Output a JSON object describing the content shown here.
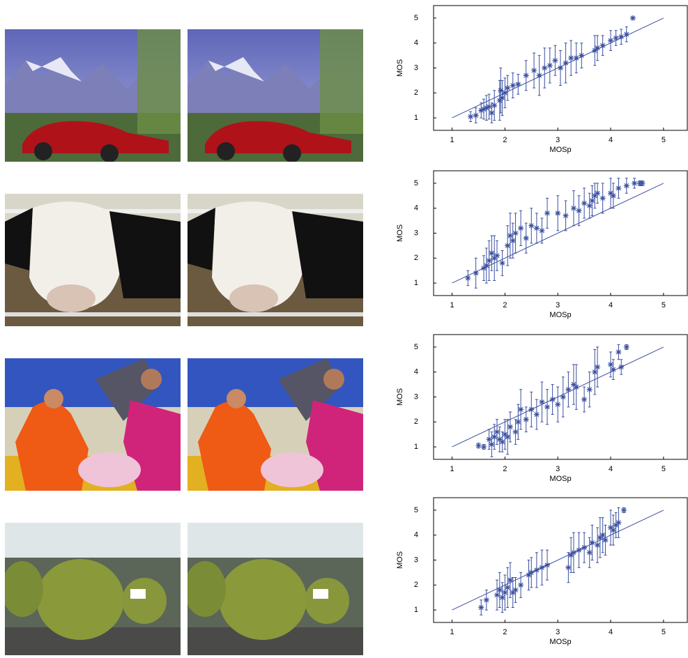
{
  "chart_data": [
    {
      "type": "scatter",
      "xlabel": "MOSp",
      "ylabel": "MOS",
      "color": "#3a4fa0",
      "xlim": [
        0.65,
        5.45
      ],
      "ylim": [
        0.5,
        5.5
      ],
      "xticks": [
        1,
        2,
        3,
        4,
        5
      ],
      "yticks": [
        1,
        2,
        3,
        4,
        5
      ],
      "fit": {
        "x": [
          1,
          5
        ],
        "values": [
          1,
          5
        ]
      },
      "x": [
        1.35,
        1.45,
        1.55,
        1.6,
        1.65,
        1.7,
        1.75,
        1.8,
        1.9,
        1.92,
        1.95,
        2.0,
        2.05,
        2.15,
        2.25,
        2.4,
        2.55,
        2.65,
        2.75,
        2.85,
        2.95,
        3.05,
        3.15,
        3.25,
        3.35,
        3.45,
        3.7,
        3.75,
        3.85,
        4.0,
        4.1,
        4.2,
        4.3,
        4.42
      ],
      "values": [
        1.05,
        1.1,
        1.3,
        1.35,
        1.4,
        1.45,
        1.2,
        1.5,
        1.7,
        2.1,
        1.8,
        2.0,
        2.2,
        2.3,
        2.35,
        2.7,
        2.9,
        2.7,
        3.0,
        3.1,
        3.3,
        3.0,
        3.2,
        3.4,
        3.4,
        3.5,
        3.7,
        3.8,
        3.9,
        4.1,
        4.2,
        4.25,
        4.35,
        5.0
      ],
      "errors": [
        0.2,
        0.3,
        0.3,
        0.4,
        0.5,
        0.5,
        0.4,
        0.6,
        0.8,
        0.9,
        0.7,
        0.6,
        0.5,
        0.5,
        0.4,
        0.6,
        0.7,
        0.8,
        0.8,
        0.7,
        0.6,
        0.7,
        0.8,
        0.7,
        0.6,
        0.5,
        0.6,
        0.5,
        0.4,
        0.4,
        0.3,
        0.3,
        0.3,
        0
      ]
    },
    {
      "type": "scatter",
      "xlabel": "MOSp",
      "ylabel": "MOS",
      "color": "#3a4fa0",
      "xlim": [
        0.65,
        5.45
      ],
      "ylim": [
        0.5,
        5.5
      ],
      "xticks": [
        1,
        2,
        3,
        4,
        5
      ],
      "yticks": [
        1,
        2,
        3,
        4,
        5
      ],
      "fit": {
        "x": [
          1,
          5
        ],
        "values": [
          1,
          5
        ]
      },
      "x": [
        1.3,
        1.45,
        1.6,
        1.65,
        1.7,
        1.75,
        1.8,
        1.85,
        1.95,
        2.05,
        2.1,
        2.15,
        2.2,
        2.3,
        2.4,
        2.5,
        2.6,
        2.7,
        2.8,
        3.0,
        3.15,
        3.3,
        3.4,
        3.5,
        3.6,
        3.65,
        3.7,
        3.75,
        3.85,
        4.0,
        4.05,
        4.15,
        4.3,
        4.45,
        4.55,
        4.6
      ],
      "values": [
        1.2,
        1.4,
        1.6,
        1.7,
        1.9,
        2.2,
        2.0,
        2.1,
        1.8,
        2.5,
        2.9,
        2.7,
        3.0,
        3.2,
        2.8,
        3.3,
        3.2,
        3.1,
        3.8,
        3.8,
        3.7,
        4.0,
        3.9,
        4.2,
        4.1,
        4.3,
        4.5,
        4.6,
        4.4,
        4.6,
        4.5,
        4.8,
        4.9,
        5.0,
        5.0,
        5.0
      ],
      "errors": [
        0.3,
        0.6,
        0.5,
        0.7,
        0.8,
        0.7,
        0.9,
        0.6,
        0.5,
        0.8,
        0.9,
        0.7,
        0.8,
        0.7,
        0.6,
        0.7,
        0.6,
        0.5,
        0.6,
        0.7,
        0.6,
        0.7,
        0.6,
        0.6,
        0.5,
        0.6,
        0.5,
        0.4,
        0.6,
        0.6,
        0.5,
        0.4,
        0.3,
        0.2,
        0.1,
        0.1
      ]
    },
    {
      "type": "scatter",
      "xlabel": "MOSp",
      "ylabel": "MOS",
      "color": "#3a4fa0",
      "xlim": [
        0.65,
        5.45
      ],
      "ylim": [
        0.5,
        5.5
      ],
      "xticks": [
        1,
        2,
        3,
        4,
        5
      ],
      "yticks": [
        1,
        2,
        3,
        4,
        5
      ],
      "fit": {
        "x": [
          1,
          5
        ],
        "values": [
          1,
          5
        ]
      },
      "x": [
        1.5,
        1.6,
        1.7,
        1.75,
        1.8,
        1.85,
        1.9,
        1.95,
        2.0,
        2.05,
        2.1,
        2.2,
        2.25,
        2.3,
        2.4,
        2.5,
        2.6,
        2.7,
        2.8,
        2.9,
        3.0,
        3.1,
        3.2,
        3.3,
        3.35,
        3.5,
        3.6,
        3.7,
        3.75,
        4.0,
        4.05,
        4.15,
        4.2,
        4.3
      ],
      "values": [
        1.05,
        1.0,
        1.3,
        1.1,
        1.4,
        1.6,
        1.3,
        1.2,
        1.5,
        1.4,
        1.8,
        1.6,
        2.0,
        2.5,
        2.1,
        2.5,
        2.3,
        2.8,
        2.6,
        2.9,
        2.7,
        3.0,
        3.3,
        3.5,
        3.4,
        2.9,
        3.3,
        4.0,
        4.2,
        4.3,
        4.1,
        4.8,
        4.2,
        5.0
      ],
      "errors": [
        0.1,
        0.1,
        0.4,
        0.5,
        0.5,
        0.5,
        0.5,
        0.4,
        0.6,
        0.7,
        0.6,
        0.5,
        0.7,
        0.8,
        0.5,
        0.7,
        0.6,
        0.8,
        0.7,
        0.6,
        0.7,
        0.8,
        0.7,
        0.8,
        0.9,
        0.5,
        0.7,
        0.9,
        0.8,
        0.5,
        0.4,
        0.3,
        0.3,
        0.1
      ]
    },
    {
      "type": "scatter",
      "xlabel": "MOSp",
      "ylabel": "MOS",
      "color": "#3a4fa0",
      "xlim": [
        0.65,
        5.45
      ],
      "ylim": [
        0.5,
        5.5
      ],
      "xticks": [
        1,
        2,
        3,
        4,
        5
      ],
      "yticks": [
        1,
        2,
        3,
        4,
        5
      ],
      "fit": {
        "x": [
          1,
          5
        ],
        "values": [
          1,
          5
        ]
      },
      "x": [
        1.55,
        1.65,
        1.85,
        1.9,
        1.95,
        2.0,
        2.05,
        2.1,
        2.15,
        2.2,
        2.3,
        2.45,
        2.5,
        2.6,
        2.7,
        2.8,
        3.2,
        3.25,
        3.3,
        3.4,
        3.5,
        3.6,
        3.65,
        3.75,
        3.8,
        3.85,
        3.9,
        4.0,
        4.05,
        4.1,
        4.15,
        4.25
      ],
      "values": [
        1.1,
        1.4,
        1.6,
        1.8,
        1.5,
        1.7,
        1.9,
        2.2,
        1.7,
        1.8,
        2.0,
        2.4,
        2.5,
        2.6,
        2.7,
        2.8,
        2.7,
        3.2,
        3.3,
        3.4,
        3.5,
        3.3,
        3.7,
        3.6,
        3.9,
        4.0,
        3.8,
        4.3,
        4.2,
        4.4,
        4.5,
        5.0
      ],
      "errors": [
        0.3,
        0.4,
        0.6,
        0.7,
        0.6,
        0.7,
        0.8,
        0.7,
        0.6,
        0.5,
        0.5,
        0.6,
        0.6,
        0.7,
        0.7,
        0.6,
        0.6,
        0.7,
        0.8,
        0.7,
        0.6,
        0.6,
        0.7,
        0.7,
        0.8,
        0.7,
        0.6,
        0.7,
        0.6,
        0.5,
        0.6,
        0.1
      ]
    }
  ]
}
